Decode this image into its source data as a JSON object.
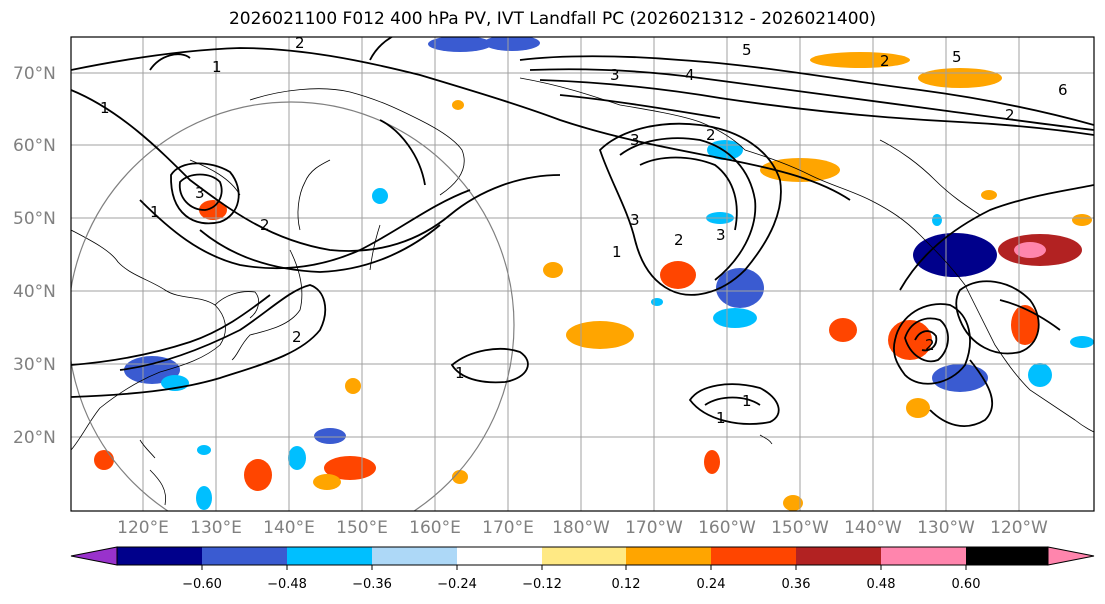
{
  "title": "2026021100 F012 400 hPa PV, IVT Landfall PC (2026021312 - 2026021400)",
  "map": {
    "lat_labels": [
      "70°N",
      "60°N",
      "50°N",
      "40°N",
      "30°N",
      "20°N"
    ],
    "lon_labels": [
      "120°E",
      "130°E",
      "140°E",
      "150°E",
      "160°E",
      "170°E",
      "180°W",
      "170°W",
      "160°W",
      "150°W",
      "140°W",
      "130°W",
      "120°W"
    ],
    "contour_labels": [
      "1",
      "2",
      "3",
      "4",
      "5",
      "6",
      "3",
      "2",
      "3",
      "2",
      "3",
      "2",
      "1",
      "1",
      "1",
      "5",
      "1",
      "2",
      "3",
      "2",
      "2",
      "1",
      "2",
      "1"
    ]
  },
  "colorbar": {
    "colors": [
      "#9932cc",
      "#00008b",
      "#3a5bd1",
      "#00bfff",
      "#add8f7",
      "#ffffff",
      "#ffe984",
      "#ffa500",
      "#ff4500",
      "#b22222",
      "#ff85ad"
    ],
    "tick_labels": [
      "−0.60",
      "−0.48",
      "−0.36",
      "−0.24",
      "−0.12",
      "0.12",
      "0.24",
      "0.36",
      "0.48",
      "0.60"
    ]
  }
}
